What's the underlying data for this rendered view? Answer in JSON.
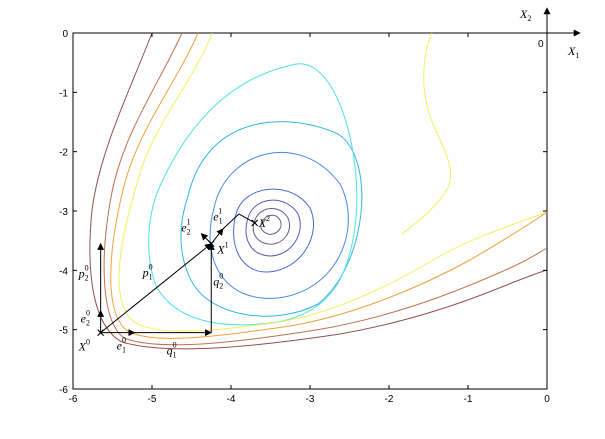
{
  "chart_data": {
    "type": "contour",
    "xlim": [
      -6,
      0
    ],
    "ylim": [
      -6,
      0
    ],
    "x_ticks": [
      "-6",
      "-5",
      "-4",
      "-3",
      "-2",
      "-1",
      "0"
    ],
    "y_ticks": [
      "0",
      "-1",
      "-2",
      "-3",
      "-4",
      "-5",
      "-6"
    ],
    "grid": false,
    "minimum": {
      "x": -3.65,
      "y": -3.25
    },
    "contour_colors": [
      "#606090",
      "#5a5ab4",
      "#4a6ad0",
      "#4a88e0",
      "#30b8e0",
      "#50e0e0",
      "#f0f060",
      "#f0a040",
      "#c07050",
      "#905050"
    ],
    "path_points": [
      {
        "x": -5.65,
        "y": -5.05
      },
      {
        "x": -4.25,
        "y": -5.05
      },
      {
        "x": -4.25,
        "y": -3.55
      },
      {
        "x": -4.1,
        "y": -3.3
      },
      {
        "x": -3.9,
        "y": -3.05
      },
      {
        "x": -3.7,
        "y": -3.2
      }
    ],
    "point_labels": {
      "x0": {
        "base": "X",
        "sup": "0"
      },
      "x1": {
        "base": "X",
        "sup": "1"
      },
      "x2": {
        "base": "X",
        "sup": "2"
      },
      "e10": {
        "base": "e",
        "sub": "1",
        "sup": "0"
      },
      "e20": {
        "base": "e",
        "sub": "2",
        "sup": "0"
      },
      "p10": {
        "base": "p",
        "sub": "1",
        "sup": "0"
      },
      "p20": {
        "base": "p",
        "sub": "2",
        "sup": "0"
      },
      "q10": {
        "base": "q",
        "sub": "1",
        "sup": "0"
      },
      "q20": {
        "base": "q",
        "sub": "2",
        "sup": "0"
      },
      "e11": {
        "base": "e",
        "sub": "1",
        "sup": "1"
      },
      "e21": {
        "base": "e",
        "sub": "2",
        "sup": "1"
      }
    },
    "axis_inset": {
      "x_label": {
        "base": "X",
        "sub": "1"
      },
      "y_label": {
        "base": "X",
        "sub": "2"
      },
      "origin": "0"
    }
  }
}
